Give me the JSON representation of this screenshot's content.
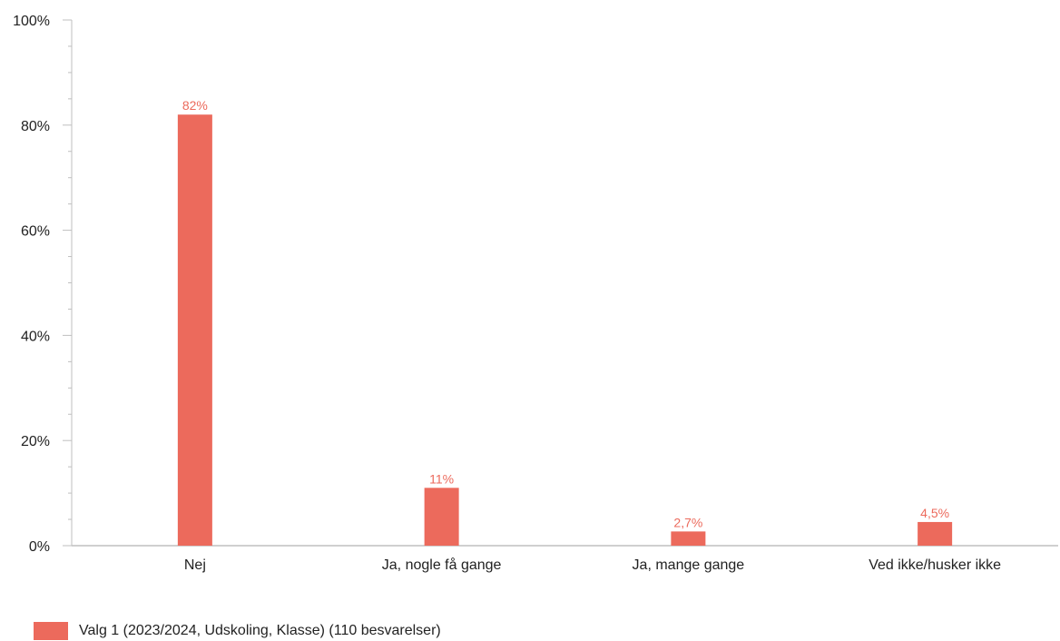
{
  "chart_data": {
    "type": "bar",
    "categories": [
      "Nej",
      "Ja, nogle få gange",
      "Ja, mange gange",
      "Ved ikke/husker ikke"
    ],
    "series": [
      {
        "name": "Valg 1 (2023/2024, Udskoling, Klasse) (110 besvarelser)",
        "values": [
          82,
          11,
          2.7,
          4.5
        ],
        "labels": [
          "82%",
          "11%",
          "2,7%",
          "4,5%"
        ],
        "color": "#ec6a5c"
      }
    ],
    "ylim": [
      0,
      100
    ],
    "yticks": [
      0,
      20,
      40,
      60,
      80,
      100
    ],
    "ytick_labels": [
      "0%",
      "20%",
      "40%",
      "60%",
      "80%",
      "100%"
    ],
    "grid": false,
    "legend_position": "bottom-left"
  },
  "legend": {
    "label": "Valg 1 (2023/2024, Udskoling, Klasse) (110 besvarelser)",
    "color": "#ec6a5c"
  }
}
